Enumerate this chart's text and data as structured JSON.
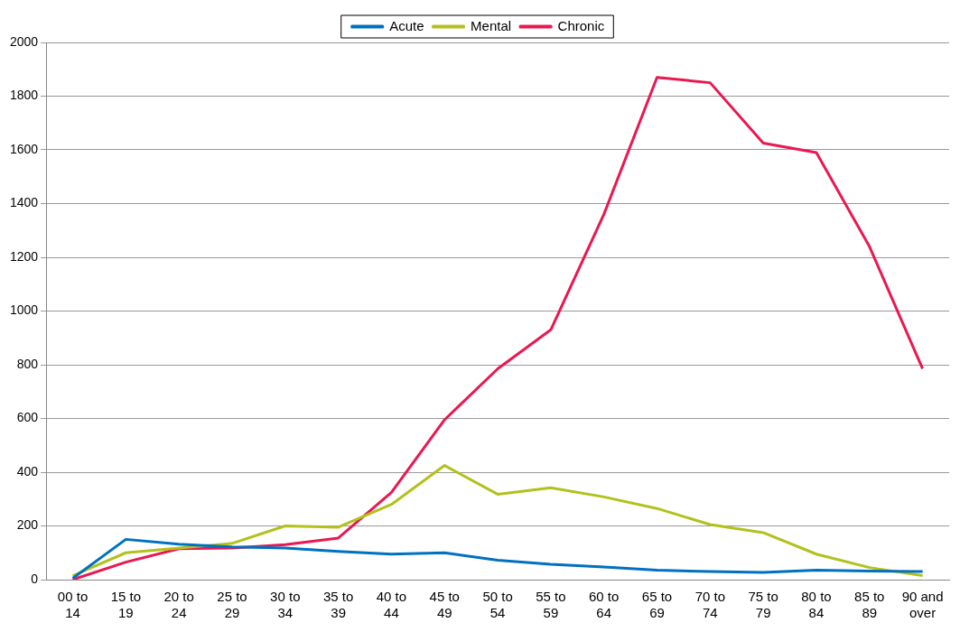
{
  "chart_data": {
    "type": "line",
    "categories": [
      "00 to 14",
      "15 to 19",
      "20 to 24",
      "25 to 29",
      "30 to 34",
      "35 to 39",
      "40 to 44",
      "45 to 49",
      "50 to 54",
      "55 to 59",
      "60 to 64",
      "65 to 69",
      "70 to 74",
      "75 to 79",
      "80 to 84",
      "85 to 89",
      "90 and over"
    ],
    "series": [
      {
        "name": "Acute",
        "color": "#0070c0",
        "values": [
          5,
          150,
          132,
          122,
          118,
          105,
          95,
          100,
          72,
          57,
          47,
          35,
          30,
          27,
          35,
          32,
          30
        ]
      },
      {
        "name": "Mental",
        "color": "#b2c11c",
        "values": [
          15,
          100,
          118,
          135,
          200,
          195,
          280,
          425,
          318,
          342,
          308,
          265,
          205,
          175,
          95,
          45,
          15
        ]
      },
      {
        "name": "Chronic",
        "color": "#eb1750",
        "values": [
          0,
          65,
          115,
          118,
          130,
          155,
          325,
          595,
          785,
          930,
          1360,
          1870,
          1850,
          1625,
          1590,
          1240,
          785
        ]
      }
    ],
    "ylim": [
      0,
      2000
    ],
    "yticks": [
      0,
      200,
      400,
      600,
      800,
      1000,
      1200,
      1400,
      1600,
      1800,
      2000
    ],
    "grid": "y",
    "legend": "top",
    "marker": "none",
    "line_style": "solid"
  }
}
